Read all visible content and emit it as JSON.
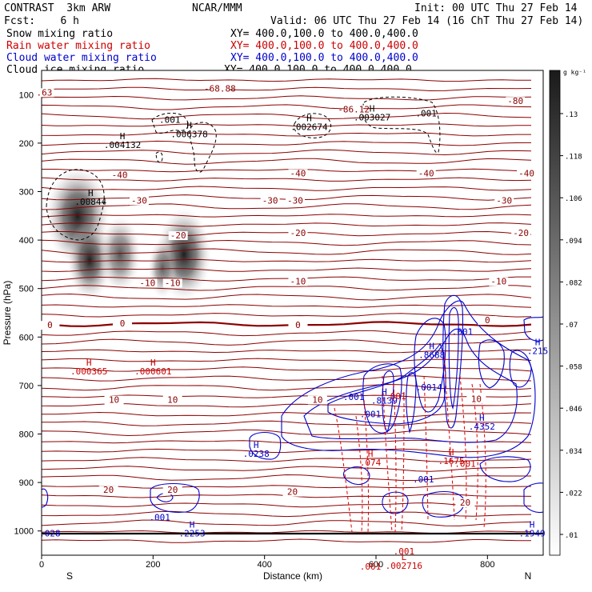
{
  "header": {
    "model": "CONTRAST  3km ARW",
    "fcst": "Fcst:    6 h",
    "center": "NCAR/MMM",
    "init": "Init: 00 UTC Thu 27 Feb 14",
    "valid": "Valid: 06 UTC Thu 27 Feb 14 (16 ChT Thu 27 Feb 14)",
    "fields": [
      {
        "name": "Snow mixing ratio",
        "xy": "XY= 400.0,100.0 to 400.0,400.0",
        "color": "#000000"
      },
      {
        "name": "Rain water mixing ratio",
        "xy": "XY= 400.0,100.0 to 400.0,400.0",
        "color": "#cc0000"
      },
      {
        "name": "Cloud water mixing ratio",
        "xy": "XY= 400.0,100.0 to 400.0,400.0",
        "color": "#0000cc"
      },
      {
        "name": "Cloud ice mixing ratio",
        "xy": "XY= 400.0,100.0 to 400.0,400.0",
        "color": "#000000"
      }
    ]
  },
  "chart_data": {
    "type": "contour cross-section",
    "xlabel": "Distance (km)",
    "ylabel": "Pressure (hPa)",
    "xlim": [
      0,
      900
    ],
    "ylim": [
      1050,
      50
    ],
    "xticks": [
      0,
      200,
      400,
      600,
      800
    ],
    "yticks": [
      100,
      200,
      300,
      400,
      500,
      600,
      700,
      800,
      900,
      1000
    ],
    "x_end_labels": {
      "left": "S",
      "right": "N"
    },
    "colorbar": {
      "unit": "g kg⁻¹",
      "ticks": [
        ".01",
        ".022",
        ".034",
        ".046",
        ".058",
        ".07",
        ".082",
        ".094",
        ".106",
        ".118",
        ".13"
      ],
      "ramp_colors": [
        "#ffffff",
        "#1a1a1a"
      ]
    },
    "temperature_labels": [
      {
        "text": ".63",
        "x": 5,
        "p": 100
      },
      {
        "text": "-68.88",
        "x": 320,
        "p": 92
      },
      {
        "text": "-86.12",
        "x": 560,
        "p": 135
      },
      {
        "text": "-80",
        "x": 850,
        "p": 118
      },
      {
        "text": "-40",
        "x": 140,
        "p": 270
      },
      {
        "text": "-40",
        "x": 460,
        "p": 267
      },
      {
        "text": "-40",
        "x": 690,
        "p": 267
      },
      {
        "text": "-40",
        "x": 870,
        "p": 267
      },
      {
        "text": "-30",
        "x": 175,
        "p": 323
      },
      {
        "text": "-30",
        "x": 410,
        "p": 323
      },
      {
        "text": "-30",
        "x": 455,
        "p": 323
      },
      {
        "text": "-30",
        "x": 830,
        "p": 323
      },
      {
        "text": "-20",
        "x": 245,
        "p": 395
      },
      {
        "text": "-20",
        "x": 460,
        "p": 390
      },
      {
        "text": "-20",
        "x": 860,
        "p": 390
      },
      {
        "text": "-10",
        "x": 190,
        "p": 493
      },
      {
        "text": "-10",
        "x": 235,
        "p": 493
      },
      {
        "text": "-10",
        "x": 460,
        "p": 490
      },
      {
        "text": "-10",
        "x": 820,
        "p": 490
      },
      {
        "text": "0",
        "x": 15,
        "p": 580
      },
      {
        "text": "0",
        "x": 145,
        "p": 576
      },
      {
        "text": "0",
        "x": 460,
        "p": 580
      },
      {
        "text": "0",
        "x": 800,
        "p": 570
      },
      {
        "text": "10",
        "x": 130,
        "p": 734
      },
      {
        "text": "10",
        "x": 235,
        "p": 734
      },
      {
        "text": "10",
        "x": 495,
        "p": 734
      },
      {
        "text": "10",
        "x": 780,
        "p": 732
      },
      {
        "text": "20",
        "x": 120,
        "p": 920
      },
      {
        "text": "20",
        "x": 235,
        "p": 920
      },
      {
        "text": "20",
        "x": 450,
        "p": 924
      },
      {
        "text": "20",
        "x": 760,
        "p": 946
      }
    ],
    "extrema_labels": [
      {
        "kind": "H",
        "value": ".004132",
        "x": 145,
        "p": 210,
        "color": "#000000"
      },
      {
        "kind": "H",
        "value": ".006378",
        "x": 265,
        "p": 188,
        "color": "#000000"
      },
      {
        "kind": "H",
        "value": ".002674",
        "x": 480,
        "p": 173,
        "color": "#000000"
      },
      {
        "kind": "H",
        "value": ".003027",
        "x": 593,
        "p": 153,
        "color": "#000000"
      },
      {
        "kind": "H",
        "value": ".00844",
        "x": 88,
        "p": 327,
        "color": "#000000"
      },
      {
        "kind": "H",
        "value": ".000365",
        "x": 85,
        "p": 677,
        "color": "#cc0000"
      },
      {
        "kind": "H",
        "value": ".000601",
        "x": 200,
        "p": 677,
        "color": "#cc0000"
      },
      {
        "kind": "H",
        "value": ".8688",
        "x": 700,
        "p": 643,
        "color": "#0000cc"
      },
      {
        "kind": "H",
        "value": ".8139",
        "x": 615,
        "p": 737,
        "color": "#0000cc"
      },
      {
        "kind": "H",
        "value": ".4352",
        "x": 790,
        "p": 791,
        "color": "#0000cc"
      },
      {
        "kind": "H",
        "value": ".215",
        "x": 890,
        "p": 635,
        "color": "#0000cc"
      },
      {
        "kind": "H",
        "value": ".0238",
        "x": 385,
        "p": 847,
        "color": "#0000cc"
      },
      {
        "kind": "H",
        "value": ".2253",
        "x": 270,
        "p": 1011,
        "color": "#0000cc"
      },
      {
        "kind": "H",
        "value": ".1949",
        "x": 880,
        "p": 1011,
        "color": "#0000cc"
      },
      {
        "kind": "H",
        "value": ".1675",
        "x": 735,
        "p": 862,
        "color": "#cc0000"
      },
      {
        "kind": "H",
        "value": ".074",
        "x": 590,
        "p": 865,
        "color": "#cc0000"
      },
      {
        "kind": "L",
        "value": ".002716",
        "x": 650,
        "p": 1078,
        "color": "#cc0000"
      }
    ],
    "contour_value_labels": [
      {
        "text": ".001",
        "x": 230,
        "p": 158,
        "color": "#000000"
      },
      {
        "text": ".001",
        "x": 690,
        "p": 145,
        "color": "#000000"
      },
      {
        "text": ".001",
        "x": 755,
        "p": 595,
        "color": "#0000cc"
      },
      {
        "text": ".001",
        "x": 560,
        "p": 730,
        "color": "#0000cc"
      },
      {
        "text": ".001",
        "x": 635,
        "p": 728,
        "color": "#cc0000"
      },
      {
        "text": ".0014",
        "x": 695,
        "p": 710,
        "color": "#0000cc"
      },
      {
        "text": ".001",
        "x": 685,
        "p": 900,
        "color": "#0000cc"
      },
      {
        "text": ".001",
        "x": 760,
        "p": 868,
        "color": "#cc0000"
      },
      {
        "text": ".001",
        "x": 650,
        "p": 1048,
        "color": "#cc0000"
      },
      {
        "text": ".001",
        "x": 590,
        "p": 1080,
        "color": "#cc0000"
      },
      {
        "text": ".001",
        "x": 212,
        "p": 978,
        "color": "#0000cc"
      },
      {
        "text": ".028",
        "x": 15,
        "p": 1011,
        "color": "#0000cc"
      },
      {
        "text": ".001",
        "x": 590,
        "p": 765,
        "color": "#0000cc"
      }
    ]
  }
}
